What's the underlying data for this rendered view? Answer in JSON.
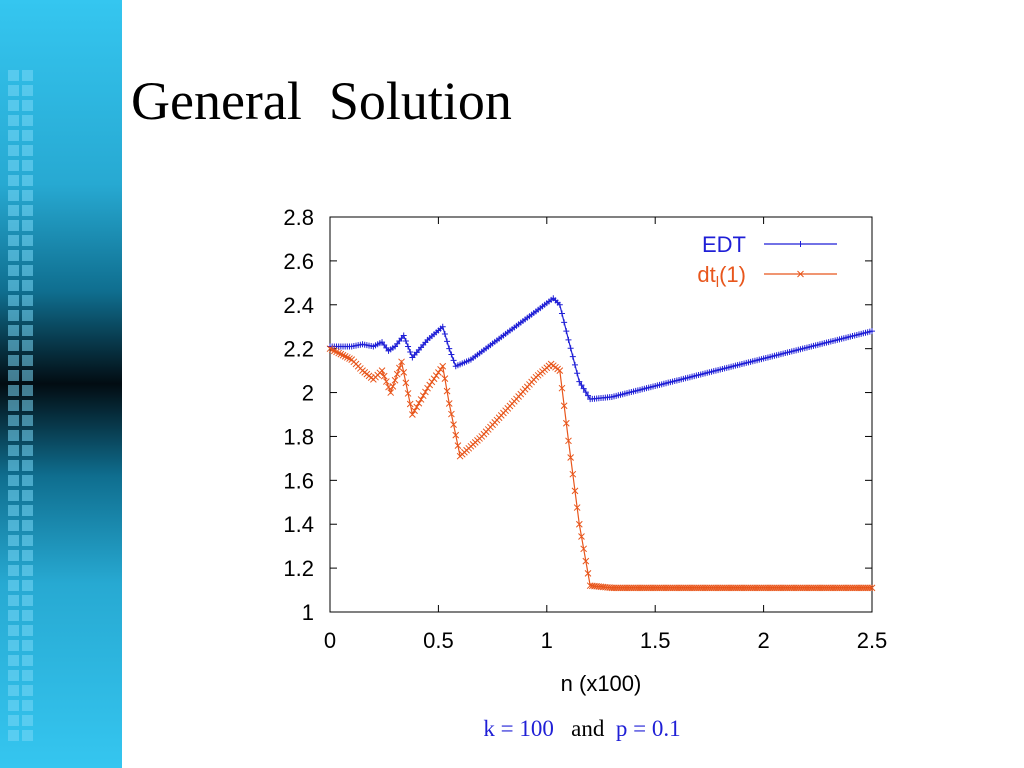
{
  "slide": {
    "title": "General  Solution",
    "caption": {
      "k": "k = 100",
      "and": "and",
      "p": "p = 0.1"
    }
  },
  "colors": {
    "sidebar": "#27a9d2",
    "edt": "#1f1fd6",
    "dt": "#e8561c",
    "caption_accent": "#1f1fd6"
  },
  "chart_data": {
    "type": "line",
    "xlabel": "n (x100)",
    "ylabel": "",
    "xlim": [
      0,
      2.5
    ],
    "ylim": [
      1,
      2.8
    ],
    "x_ticks": [
      "0",
      "0.5",
      "1",
      "1.5",
      "2",
      "2.5"
    ],
    "y_ticks": [
      "1",
      "1.2",
      "1.4",
      "1.6",
      "1.8",
      "2",
      "2.2",
      "2.4",
      "2.6",
      "2.8"
    ],
    "legend_position": "top-right",
    "series": [
      {
        "name": "EDT",
        "color": "#1f1fd6",
        "marker": "plus",
        "points": [
          [
            0,
            2.21
          ],
          [
            0.1,
            2.21
          ],
          [
            0.15,
            2.22
          ],
          [
            0.2,
            2.21
          ],
          [
            0.24,
            2.23
          ],
          [
            0.27,
            2.19
          ],
          [
            0.3,
            2.21
          ],
          [
            0.34,
            2.26
          ],
          [
            0.38,
            2.16
          ],
          [
            0.45,
            2.24
          ],
          [
            0.52,
            2.3
          ],
          [
            0.55,
            2.2
          ],
          [
            0.58,
            2.12
          ],
          [
            0.65,
            2.15
          ],
          [
            0.8,
            2.26
          ],
          [
            0.95,
            2.37
          ],
          [
            1.03,
            2.43
          ],
          [
            1.06,
            2.4
          ],
          [
            1.1,
            2.24
          ],
          [
            1.15,
            2.05
          ],
          [
            1.2,
            1.97
          ],
          [
            1.3,
            1.98
          ],
          [
            1.5,
            2.03
          ],
          [
            1.7,
            2.08
          ],
          [
            1.9,
            2.13
          ],
          [
            2.1,
            2.18
          ],
          [
            2.3,
            2.23
          ],
          [
            2.5,
            2.28
          ]
        ]
      },
      {
        "name": "dt_l(1)",
        "name_main": "dt",
        "name_sub": "l",
        "name_tail": "(1)",
        "color": "#e8561c",
        "marker": "x",
        "points": [
          [
            0,
            2.2
          ],
          [
            0.1,
            2.15
          ],
          [
            0.15,
            2.1
          ],
          [
            0.2,
            2.06
          ],
          [
            0.24,
            2.1
          ],
          [
            0.28,
            2.0
          ],
          [
            0.33,
            2.14
          ],
          [
            0.38,
            1.9
          ],
          [
            0.45,
            2.02
          ],
          [
            0.52,
            2.12
          ],
          [
            0.55,
            1.95
          ],
          [
            0.6,
            1.71
          ],
          [
            0.7,
            1.8
          ],
          [
            0.85,
            1.96
          ],
          [
            0.95,
            2.07
          ],
          [
            1.02,
            2.13
          ],
          [
            1.06,
            2.1
          ],
          [
            1.1,
            1.78
          ],
          [
            1.15,
            1.4
          ],
          [
            1.2,
            1.12
          ],
          [
            1.3,
            1.11
          ],
          [
            1.6,
            1.11
          ],
          [
            2.0,
            1.11
          ],
          [
            2.5,
            1.11
          ]
        ]
      }
    ]
  }
}
